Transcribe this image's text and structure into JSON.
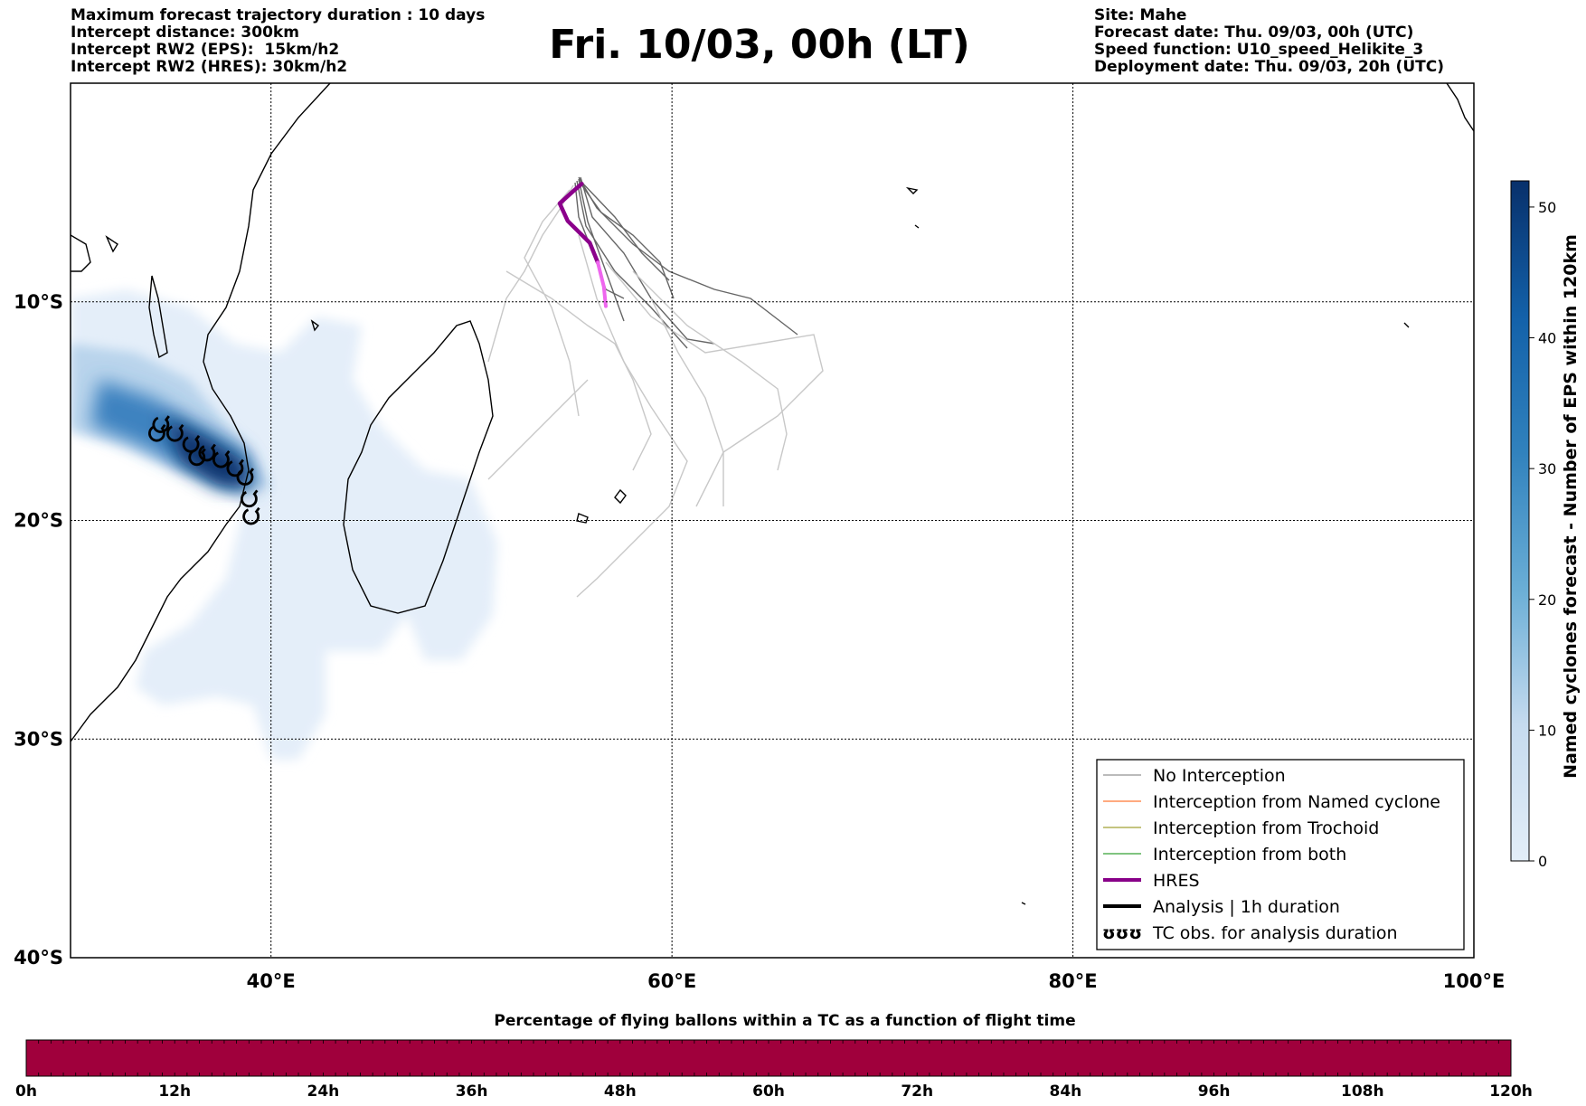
{
  "header_left": {
    "line1": "Maximum forecast trajectory duration : 10 days",
    "line2": "Intercept distance: 300km",
    "line3": "Intercept RW2 (EPS):  15km/h2",
    "line4": "Intercept RW2 (HRES): 30km/h2"
  },
  "title": "Fri. 10/03, 00h (LT)",
  "header_right": {
    "line1": "Site: Mahe",
    "line2": "Forecast date: Thu. 09/03, 00h (UTC)",
    "line3": "Speed function: U10_speed_Helikite_3",
    "line4": "Deployment date: Thu. 09/03, 20h (UTC)"
  },
  "map": {
    "lon_range": [
      30,
      100
    ],
    "lat_range": [
      -40,
      0
    ],
    "lon_ticks": [
      {
        "value": 40,
        "label": "40°E"
      },
      {
        "value": 60,
        "label": "60°E"
      },
      {
        "value": 80,
        "label": "80°E"
      },
      {
        "value": 100,
        "label": "100°E"
      }
    ],
    "lat_ticks": [
      {
        "value": -10,
        "label": "10°S"
      },
      {
        "value": -20,
        "label": "20°S"
      },
      {
        "value": -30,
        "label": "30°S"
      },
      {
        "value": -40,
        "label": "40°S"
      }
    ],
    "gridlines": "dotted",
    "site": {
      "name": "Mahe",
      "lon": 55.5,
      "lat": -4.6
    },
    "hres_trajectory": [
      [
        55.5,
        -4.6
      ],
      [
        55.0,
        -5.0
      ],
      [
        54.4,
        -5.5
      ],
      [
        54.8,
        -6.3
      ],
      [
        55.9,
        -7.3
      ],
      [
        56.3,
        -8.2
      ],
      [
        56.6,
        -9.3
      ],
      [
        56.7,
        -10.2
      ]
    ],
    "tc_observations": [
      [
        34.5,
        -15.6
      ],
      [
        35.2,
        -16.0
      ],
      [
        36.0,
        -16.5
      ],
      [
        36.8,
        -16.9
      ],
      [
        37.5,
        -17.2
      ],
      [
        38.2,
        -17.6
      ],
      [
        38.7,
        -18.0
      ],
      [
        38.9,
        -19.0
      ],
      [
        39.0,
        -19.8
      ],
      [
        34.3,
        -16.0
      ],
      [
        36.3,
        -17.1
      ]
    ]
  },
  "colorbar_right": {
    "title": "Named cyclones forecast - Number of EPS within 120km",
    "ticks": [
      "0",
      "10",
      "20",
      "30",
      "40",
      "50"
    ],
    "range": [
      0,
      52
    ],
    "colors": [
      "#dde9f6",
      "#08306b"
    ]
  },
  "legend": {
    "items": [
      {
        "label": "No Interception",
        "color": "#777777",
        "width": 1
      },
      {
        "label": "Interception from Named cyclone",
        "color": "#ff5500",
        "width": 1
      },
      {
        "label": "Interception from Trochoid",
        "color": "#888800",
        "width": 1
      },
      {
        "label": "Interception from both",
        "color": "#008800",
        "width": 1
      },
      {
        "label": "HRES",
        "color": "#880088",
        "width": 4
      },
      {
        "label": "Analysis | 1h duration",
        "color": "#000000",
        "width": 4
      },
      {
        "label": "TC obs. for analysis duration",
        "symbol": "ʊʊʊ"
      }
    ]
  },
  "bottom_bar": {
    "title": "Percentage of flying ballons within a TC as a function of flight time",
    "ticks": [
      "0h",
      "12h",
      "24h",
      "36h",
      "48h",
      "60h",
      "72h",
      "84h",
      "96h",
      "108h",
      "120h"
    ],
    "fill_color": "#a0003c"
  }
}
